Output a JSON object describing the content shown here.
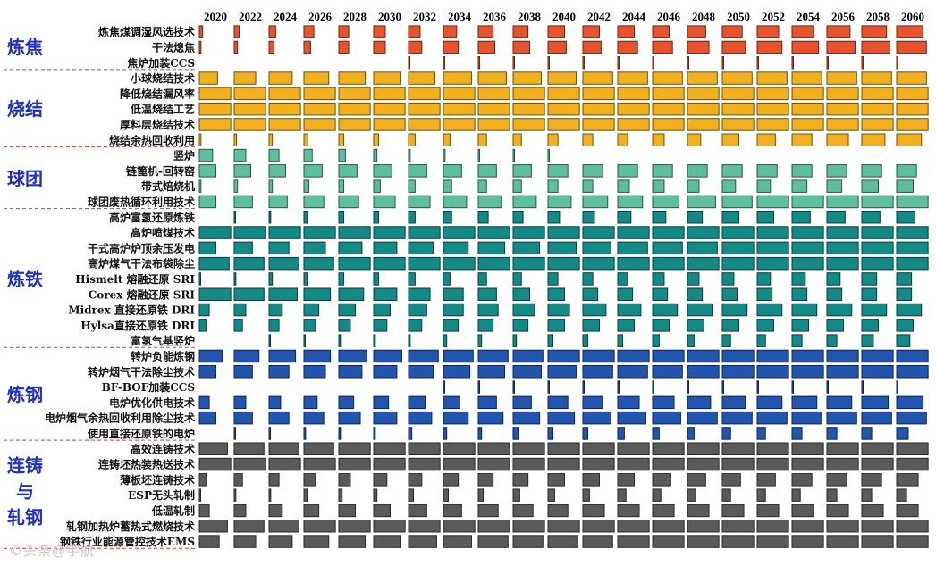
{
  "watermark": "©头条@宇航",
  "chart_data": {
    "type": "heatmap",
    "title": "",
    "years": [
      "2020",
      "2022",
      "2024",
      "2026",
      "2028",
      "2030",
      "2032",
      "2034",
      "2036",
      "2038",
      "2040",
      "2042",
      "2044",
      "2046",
      "2048",
      "2050",
      "2052",
      "2054",
      "2056",
      "2058",
      "2060"
    ],
    "value_note": "cell value = relative bar length (0-1) per technology per year",
    "groups": [
      {
        "name": "炼焦",
        "color": "#e8532e",
        "rows": [
          {
            "label": "炼焦煤调湿风选技术",
            "values": [
              0.1,
              0.15,
              0.2,
              0.3,
              0.3,
              0.35,
              0.35,
              0.4,
              0.45,
              0.45,
              0.5,
              0.5,
              0.5,
              0.5,
              0.55,
              0.6,
              0.65,
              0.65,
              0.7,
              0.75,
              0.8
            ]
          },
          {
            "label": "干法熄焦",
            "values": [
              0.05,
              0.1,
              0.15,
              0.2,
              0.3,
              0.35,
              0.4,
              0.45,
              0.5,
              0.5,
              0.55,
              0.55,
              0.6,
              0.6,
              0.65,
              0.7,
              0.75,
              0.8,
              0.85,
              0.85,
              0.9
            ]
          },
          {
            "label": "焦炉加装CCS",
            "values": [
              0,
              0,
              0,
              0,
              0,
              0,
              0.02,
              0.02,
              0.02,
              0.02,
              0.02,
              0.02,
              0.02,
              0.02,
              0.02,
              0.02,
              0.02,
              0.02,
              0.02,
              0.02,
              0.02
            ]
          }
        ]
      },
      {
        "name": "烧结",
        "color": "#f2b01e",
        "rows": [
          {
            "label": "小球烧结技术",
            "values": [
              0.55,
              0.65,
              0.7,
              0.75,
              0.8,
              0.8,
              0.8,
              0.85,
              0.85,
              0.85,
              0.85,
              0.9,
              0.9,
              0.9,
              0.9,
              0.9,
              0.9,
              0.9,
              0.9,
              0.9,
              0.9
            ]
          },
          {
            "label": "降低烧结漏风率",
            "values": [
              0.95,
              0.95,
              0.95,
              0.95,
              0.95,
              0.95,
              0.95,
              0.95,
              0.95,
              0.95,
              0.95,
              0.95,
              0.95,
              0.95,
              0.95,
              0.95,
              0.95,
              0.95,
              0.95,
              0.95,
              0.95
            ]
          },
          {
            "label": "低温烧结工艺",
            "values": [
              0.95,
              0.95,
              0.95,
              0.95,
              0.95,
              0.95,
              0.95,
              0.95,
              0.95,
              0.95,
              0.95,
              0.95,
              0.95,
              0.95,
              0.95,
              0.95,
              0.95,
              0.95,
              0.95,
              0.95,
              0.95
            ]
          },
          {
            "label": "厚料层烧结技术",
            "values": [
              0.95,
              0.95,
              0.95,
              0.95,
              0.95,
              0.95,
              0.95,
              0.95,
              0.95,
              0.95,
              0.95,
              0.95,
              0.95,
              0.95,
              0.95,
              0.95,
              0.95,
              0.95,
              0.95,
              0.95,
              0.95
            ]
          },
          {
            "label": "烧结余热回收利用",
            "values": [
              0.05,
              0.07,
              0.1,
              0.12,
              0.15,
              0.15,
              0.2,
              0.2,
              0.25,
              0.25,
              0.3,
              0.3,
              0.3,
              0.35,
              0.4,
              0.5,
              0.55,
              0.6,
              0.65,
              0.7,
              0.75
            ]
          }
        ]
      },
      {
        "name": "球团",
        "color": "#5dbf9e",
        "rows": [
          {
            "label": "竖炉",
            "values": [
              0.4,
              0.35,
              0.3,
              0.25,
              0.2,
              0.1,
              0.05,
              0.05,
              0.03,
              0.02,
              0.02,
              0,
              0,
              0,
              0,
              0,
              0,
              0,
              0,
              0,
              0
            ]
          },
          {
            "label": "链篦机-回转窑",
            "values": [
              0.5,
              0.5,
              0.5,
              0.55,
              0.55,
              0.55,
              0.55,
              0.55,
              0.55,
              0.55,
              0.6,
              0.6,
              0.6,
              0.6,
              0.6,
              0.6,
              0.6,
              0.6,
              0.6,
              0.6,
              0.6
            ]
          },
          {
            "label": "带式焙烧机",
            "values": [
              0.05,
              0.1,
              0.1,
              0.15,
              0.15,
              0.2,
              0.2,
              0.25,
              0.25,
              0.25,
              0.3,
              0.3,
              0.35,
              0.35,
              0.35,
              0.4,
              0.4,
              0.45,
              0.45,
              0.5,
              0.5
            ]
          },
          {
            "label": "球团废热循环利用技术",
            "values": [
              0.5,
              0.55,
              0.55,
              0.6,
              0.6,
              0.65,
              0.65,
              0.7,
              0.7,
              0.7,
              0.7,
              0.75,
              0.75,
              0.8,
              0.85,
              0.9,
              0.95,
              0.95,
              0.95,
              0.95,
              0.95
            ]
          }
        ]
      },
      {
        "name": "炼铁",
        "color": "#138a86",
        "rows": [
          {
            "label": "高炉富氢还原炼铁",
            "values": [
              0,
              0.02,
              0.05,
              0.1,
              0.15,
              0.15,
              0.2,
              0.25,
              0.3,
              0.3,
              0.35,
              0.35,
              0.4,
              0.4,
              0.45,
              0.5,
              0.5,
              0.55,
              0.55,
              0.55,
              0.55
            ]
          },
          {
            "label": "高炉喷煤技术",
            "values": [
              0.95,
              0.95,
              0.95,
              0.95,
              0.95,
              0.95,
              0.95,
              0.95,
              0.95,
              0.95,
              0.95,
              0.95,
              0.95,
              0.95,
              0.95,
              0.95,
              0.95,
              0.95,
              0.95,
              0.95,
              0.95
            ]
          },
          {
            "label": "干式高炉炉顶余压发电",
            "values": [
              0.5,
              0.55,
              0.6,
              0.65,
              0.7,
              0.7,
              0.75,
              0.75,
              0.8,
              0.8,
              0.85,
              0.85,
              0.9,
              0.9,
              0.9,
              0.95,
              0.95,
              0.95,
              0.95,
              0.95,
              0.95
            ]
          },
          {
            "label": "高炉煤气干法布袋除尘",
            "values": [
              0.9,
              0.9,
              0.9,
              0.9,
              0.95,
              0.95,
              0.95,
              0.95,
              0.95,
              0.95,
              0.95,
              0.95,
              0.95,
              0.95,
              0.95,
              0.95,
              0.95,
              0.95,
              0.95,
              0.95,
              0.95
            ]
          },
          {
            "label": "Hismelt 熔融还原 SRI",
            "values": [
              0.02,
              0.05,
              0.1,
              0.1,
              0.15,
              0.15,
              0.2,
              0.2,
              0.25,
              0.25,
              0.3,
              0.3,
              0.3,
              0.35,
              0.35,
              0.35,
              0.4,
              0.4,
              0.4,
              0.45,
              0.45
            ]
          },
          {
            "label": "Corex 熔融还原 SRI",
            "values": [
              0.95,
              0.9,
              0.85,
              0.8,
              0.75,
              0.7,
              0.65,
              0.6,
              0.55,
              0.5,
              0.5,
              0.45,
              0.45,
              0.45,
              0.45,
              0.45,
              0.45,
              0.45,
              0.45,
              0.45,
              0.45
            ]
          },
          {
            "label": "Midrex 直接还原铁 DRI",
            "values": [
              0.3,
              0.35,
              0.4,
              0.45,
              0.5,
              0.5,
              0.55,
              0.6,
              0.6,
              0.65,
              0.65,
              0.7,
              0.7,
              0.75,
              0.75,
              0.75,
              0.75,
              0.75,
              0.75,
              0.75,
              0.75
            ]
          },
          {
            "label": "Hylsa直接还原铁 DRI",
            "values": [
              0.2,
              0.25,
              0.3,
              0.35,
              0.35,
              0.4,
              0.4,
              0.45,
              0.45,
              0.45,
              0.5,
              0.5,
              0.5,
              0.5,
              0.5,
              0.5,
              0.5,
              0.5,
              0.5,
              0.5,
              0.5
            ]
          },
          {
            "label": "富氢气基竖炉",
            "values": [
              0,
              0,
              0.02,
              0.02,
              0.05,
              0.05,
              0.05,
              0.1,
              0.1,
              0.1,
              0.15,
              0.15,
              0.15,
              0.2,
              0.2,
              0.25,
              0.25,
              0.3,
              0.3,
              0.35,
              0.4
            ]
          }
        ]
      },
      {
        "name": "炼钢",
        "color": "#2255b0",
        "rows": [
          {
            "label": "转炉负能炼钢",
            "values": [
              0.7,
              0.75,
              0.8,
              0.8,
              0.85,
              0.85,
              0.9,
              0.9,
              0.9,
              0.9,
              0.95,
              0.95,
              0.95,
              0.95,
              0.95,
              0.95,
              0.95,
              0.95,
              0.95,
              0.95,
              0.95
            ]
          },
          {
            "label": "转炉烟气干法除尘技术",
            "values": [
              0.5,
              0.55,
              0.6,
              0.65,
              0.7,
              0.7,
              0.75,
              0.8,
              0.8,
              0.85,
              0.85,
              0.9,
              0.9,
              0.9,
              0.95,
              0.95,
              0.95,
              0.95,
              0.95,
              0.95,
              0.95
            ]
          },
          {
            "label": "BF-BOF加装CCS",
            "values": [
              0,
              0,
              0,
              0,
              0,
              0,
              0,
              0.02,
              0.02,
              0.02,
              0.02,
              0.02,
              0.02,
              0.02,
              0.02,
              0.02,
              0.02,
              0.02,
              0.02,
              0.02,
              0.02
            ]
          },
          {
            "label": "电炉优化供电技术",
            "values": [
              0.3,
              0.35,
              0.35,
              0.4,
              0.45,
              0.45,
              0.5,
              0.5,
              0.55,
              0.55,
              0.6,
              0.6,
              0.65,
              0.65,
              0.7,
              0.7,
              0.75,
              0.75,
              0.75,
              0.8,
              0.8
            ]
          },
          {
            "label": "电炉烟气余热回收利用除尘技术",
            "values": [
              0.5,
              0.55,
              0.6,
              0.6,
              0.65,
              0.7,
              0.7,
              0.75,
              0.75,
              0.8,
              0.8,
              0.85,
              0.85,
              0.85,
              0.9,
              0.9,
              0.9,
              0.9,
              0.9,
              0.9,
              0.9
            ]
          },
          {
            "label": "使用直接还原铁的电炉",
            "values": [
              0,
              0.02,
              0.02,
              0.05,
              0.05,
              0.05,
              0.1,
              0.1,
              0.1,
              0.15,
              0.15,
              0.15,
              0.2,
              0.2,
              0.2,
              0.25,
              0.25,
              0.3,
              0.3,
              0.3,
              0.35
            ]
          }
        ]
      },
      {
        "name": "连铸与轧钢",
        "color": "#5a5a5a",
        "rows": [
          {
            "label": "高效连铸技术",
            "values": [
              0.85,
              0.9,
              0.9,
              0.9,
              0.95,
              0.95,
              0.95,
              0.95,
              0.95,
              0.95,
              0.95,
              0.95,
              0.95,
              0.95,
              0.95,
              0.95,
              0.95,
              0.95,
              0.95,
              0.95,
              0.95
            ]
          },
          {
            "label": "连铸坯热装热送技术",
            "values": [
              0.95,
              0.95,
              0.95,
              0.95,
              0.95,
              0.95,
              0.95,
              0.95,
              0.95,
              0.95,
              0.95,
              0.95,
              0.95,
              0.95,
              0.95,
              0.95,
              0.95,
              0.95,
              0.95,
              0.95,
              0.95
            ]
          },
          {
            "label": "薄板坯连铸技术",
            "values": [
              0.2,
              0.25,
              0.3,
              0.35,
              0.35,
              0.4,
              0.4,
              0.45,
              0.45,
              0.45,
              0.5,
              0.5,
              0.5,
              0.55,
              0.55,
              0.55,
              0.55,
              0.6,
              0.6,
              0.6,
              0.65
            ]
          },
          {
            "label": "ESP无头轧制",
            "values": [
              0.02,
              0.05,
              0.05,
              0.1,
              0.1,
              0.1,
              0.15,
              0.15,
              0.15,
              0.2,
              0.2,
              0.2,
              0.25,
              0.25,
              0.25,
              0.25,
              0.25,
              0.25,
              0.3,
              0.3,
              0.3
            ]
          },
          {
            "label": "低温轧制",
            "values": [
              0.3,
              0.35,
              0.4,
              0.45,
              0.5,
              0.5,
              0.55,
              0.55,
              0.6,
              0.6,
              0.6,
              0.65,
              0.65,
              0.65,
              0.65,
              0.65,
              0.65,
              0.65,
              0.65,
              0.65,
              0.65
            ]
          },
          {
            "label": "轧钢加热炉蓄热式燃烧技术",
            "values": [
              0.85,
              0.9,
              0.9,
              0.95,
              0.95,
              0.95,
              0.95,
              0.95,
              0.95,
              0.95,
              0.95,
              0.95,
              0.95,
              0.95,
              0.95,
              0.95,
              0.95,
              0.95,
              0.95,
              0.95,
              0.95
            ]
          },
          {
            "label": "钢铁行业能源管控技术EMS",
            "values": [
              0.6,
              0.65,
              0.7,
              0.75,
              0.8,
              0.8,
              0.85,
              0.85,
              0.9,
              0.9,
              0.9,
              0.9,
              0.95,
              0.95,
              0.95,
              0.95,
              0.95,
              0.95,
              0.95,
              0.95,
              0.95
            ]
          }
        ]
      }
    ]
  }
}
